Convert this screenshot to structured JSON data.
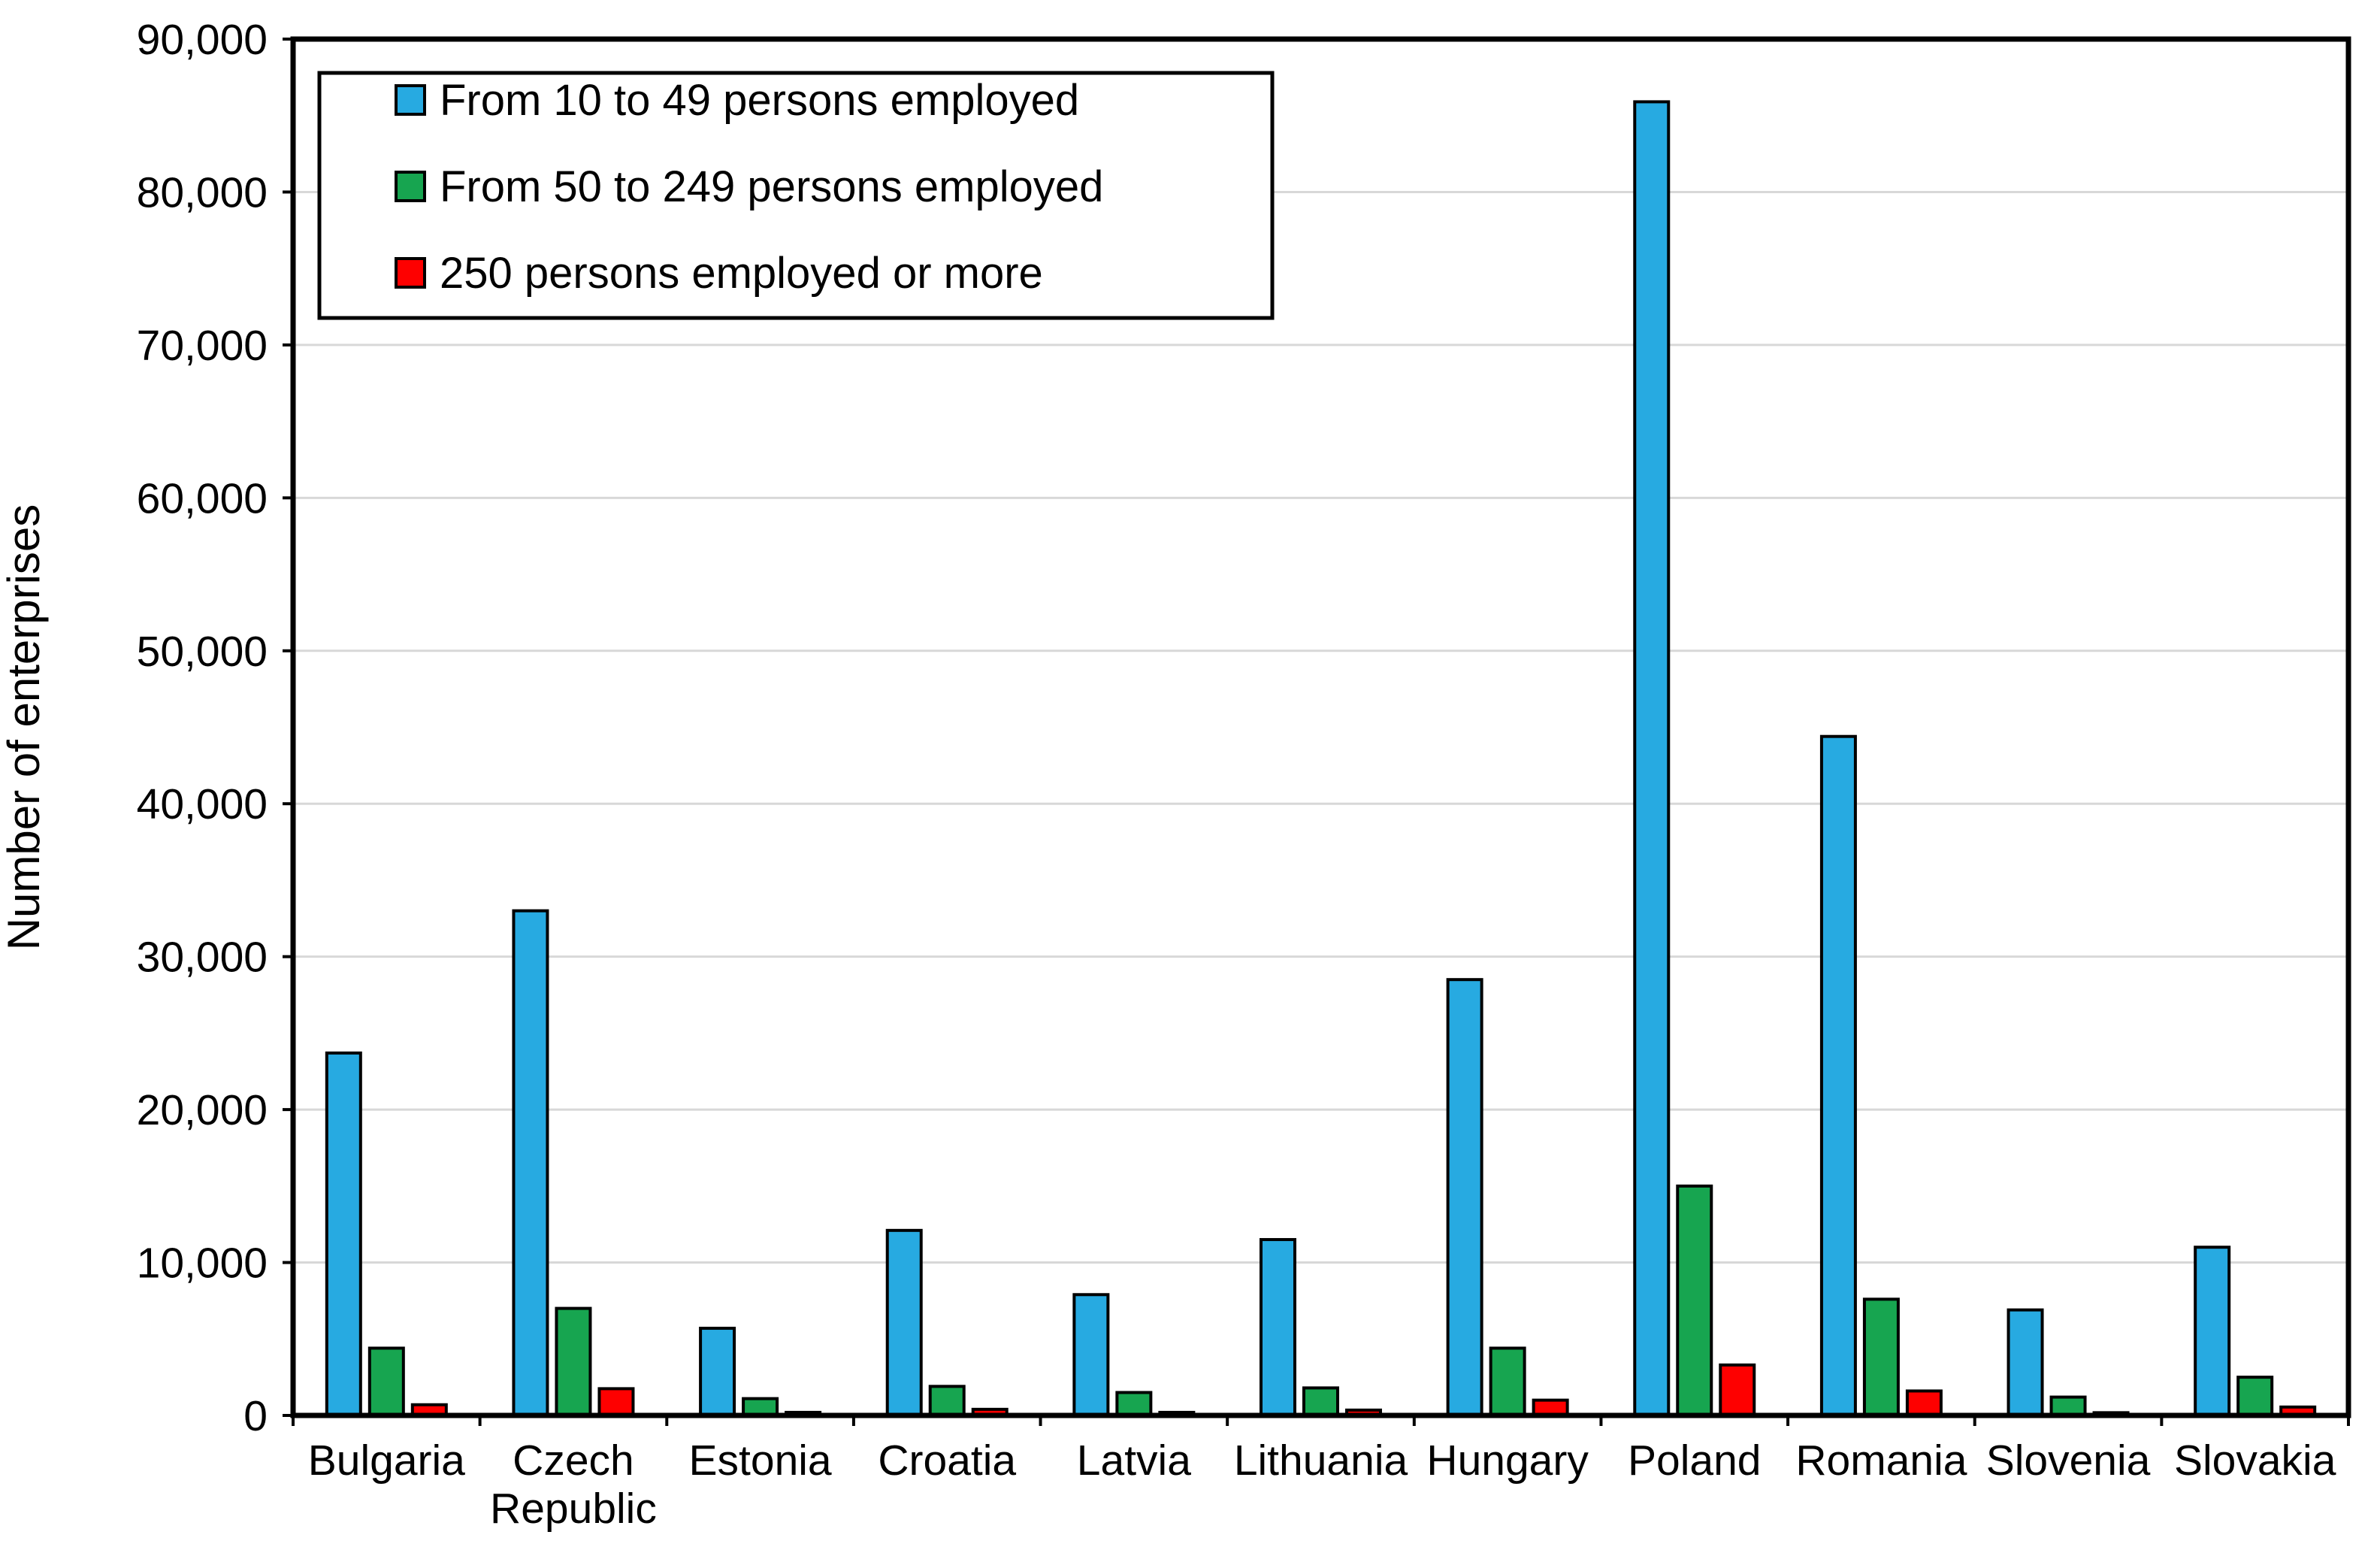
{
  "chart_data": {
    "type": "bar",
    "title": "",
    "xlabel": "",
    "ylabel": "Number of enterprises",
    "ylim": [
      0,
      90000
    ],
    "ytick_step": 10000,
    "ytick_labels": [
      "0",
      "10,000",
      "20,000",
      "30,000",
      "40,000",
      "50,000",
      "60,000",
      "70,000",
      "80,000",
      "90,000"
    ],
    "grid": "horizontal",
    "gridline_color": "#D8D8D8",
    "frame_color": "#000000",
    "background": "#FFFFFF",
    "legend_position": "top-left-inside",
    "categories": [
      "Bulgaria",
      "Czech Republic",
      "Estonia",
      "Croatia",
      "Latvia",
      "Lithuania",
      "Hungary",
      "Poland",
      "Romania",
      "Slovenia",
      "Slovakia"
    ],
    "categories_lines": [
      [
        "Bulgaria"
      ],
      [
        "Czech",
        "Republic"
      ],
      [
        "Estonia"
      ],
      [
        "Croatia"
      ],
      [
        "Latvia"
      ],
      [
        "Lithuania"
      ],
      [
        "Hungary"
      ],
      [
        "Poland"
      ],
      [
        "Romania"
      ],
      [
        "Slovenia"
      ],
      [
        "Slovakia"
      ]
    ],
    "series": [
      {
        "name": "From 10 to 49 persons employed",
        "color": "#27AAE1",
        "values": [
          23700,
          33000,
          5700,
          12100,
          7900,
          11500,
          28500,
          85900,
          44400,
          6900,
          11000
        ]
      },
      {
        "name": "From 50 to 249 persons employed",
        "color": "#17A550",
        "values": [
          4400,
          7000,
          1100,
          1900,
          1500,
          1800,
          4400,
          15000,
          7600,
          1200,
          2500
        ]
      },
      {
        "name": "250 persons employed or more",
        "color": "#FE0000",
        "values": [
          700,
          1750,
          200,
          400,
          200,
          350,
          1000,
          3300,
          1600,
          180,
          550
        ]
      }
    ]
  }
}
